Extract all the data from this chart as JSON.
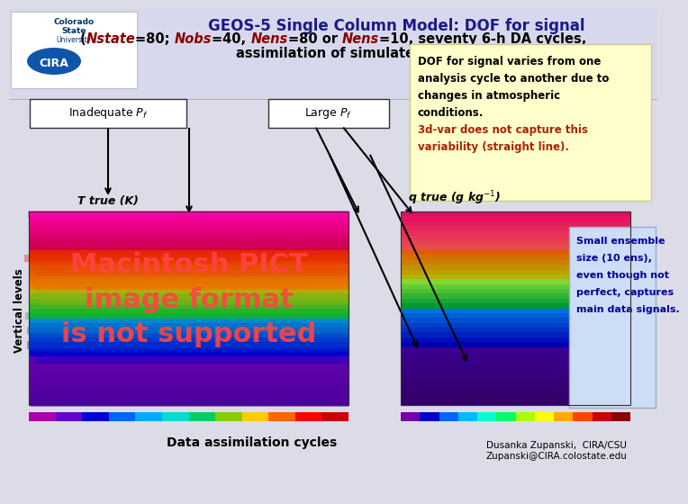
{
  "title_line1": "GEOS-5 Single Column Model: DOF for signal",
  "title_line3": "assimilation of simulated T,q observations)",
  "label_inadequate": "Inadequate $P_f$",
  "label_large": "Large $P_f$",
  "text_box1_lines_black": [
    "DOF for signal varies from one",
    "analysis cycle to another due to",
    "changes in atmospheric",
    "conditions."
  ],
  "text_box1_lines_red": [
    "3d-var does not capture this",
    "variability (straight line)."
  ],
  "text_box1_color_red": "#AA2200",
  "text_box1_bg": "#FFFFCC",
  "text_box2_lines": [
    "Small ensemble",
    "size (10 ens),",
    "even though not",
    "perfect, captures",
    "main data signals."
  ],
  "text_box2_color": "#000099",
  "text_box2_bg": "#CCDDF5",
  "ylabel": "Vertical levels",
  "xlabel": "Data assimilation cycles",
  "credit_line1": "Dusanka Zupanski,  CIRA/CSU",
  "credit_line2": "Zupanski@CIRA.colostate.edu",
  "bg_color": "#DCDCE8",
  "header_bg": "#DCDCE8",
  "t_true_label": "T true (K)",
  "q_true_label": "q true (g kg$^{-1}$)",
  "mac_text": "Macintosh PICT\nimage format\nis not supported",
  "mac_color": "#FF4444",
  "title_color": "#1A1A8C",
  "nstate_color": "#8B0000"
}
